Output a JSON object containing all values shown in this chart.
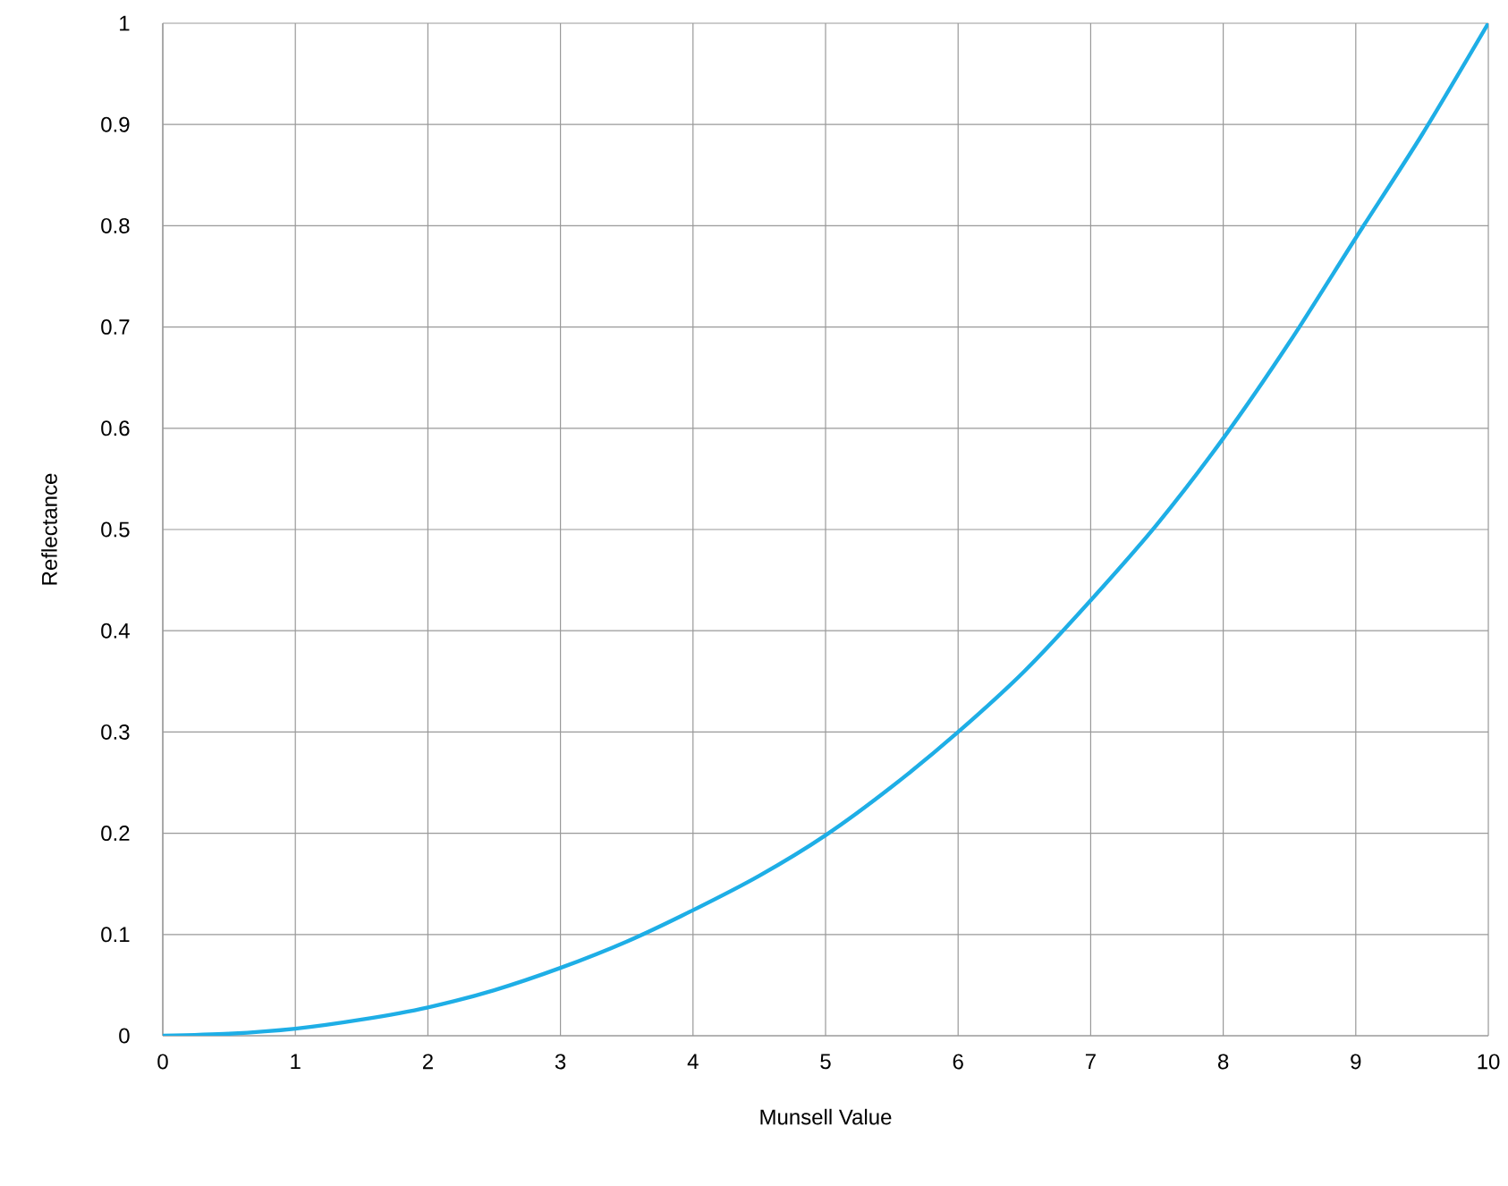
{
  "chart_data": {
    "type": "line",
    "xlabel": "Munsell Value",
    "ylabel": "Reflectance",
    "x": [
      0,
      0.5,
      1,
      1.5,
      2,
      2.5,
      3,
      3.5,
      4,
      4.5,
      5,
      5.5,
      6,
      6.5,
      7,
      7.5,
      8,
      8.5,
      9,
      9.5,
      10
    ],
    "series": [
      {
        "color": "#1eaee6",
        "values": [
          0,
          0.002,
          0.007,
          0.016,
          0.028,
          0.045,
          0.067,
          0.093,
          0.124,
          0.158,
          0.198,
          0.246,
          0.3,
          0.36,
          0.43,
          0.505,
          0.59,
          0.685,
          0.788,
          0.89,
          1.0
        ]
      }
    ],
    "xlim": [
      0,
      10
    ],
    "ylim": [
      0,
      1
    ],
    "xticks": [
      0,
      1,
      2,
      3,
      4,
      5,
      6,
      7,
      8,
      9,
      10
    ],
    "yticks": [
      0,
      0.1,
      0.2,
      0.3,
      0.4,
      0.5,
      0.6,
      0.7,
      0.8,
      0.9,
      1
    ],
    "grid": true,
    "marker": "none",
    "line_style": "solid"
  }
}
